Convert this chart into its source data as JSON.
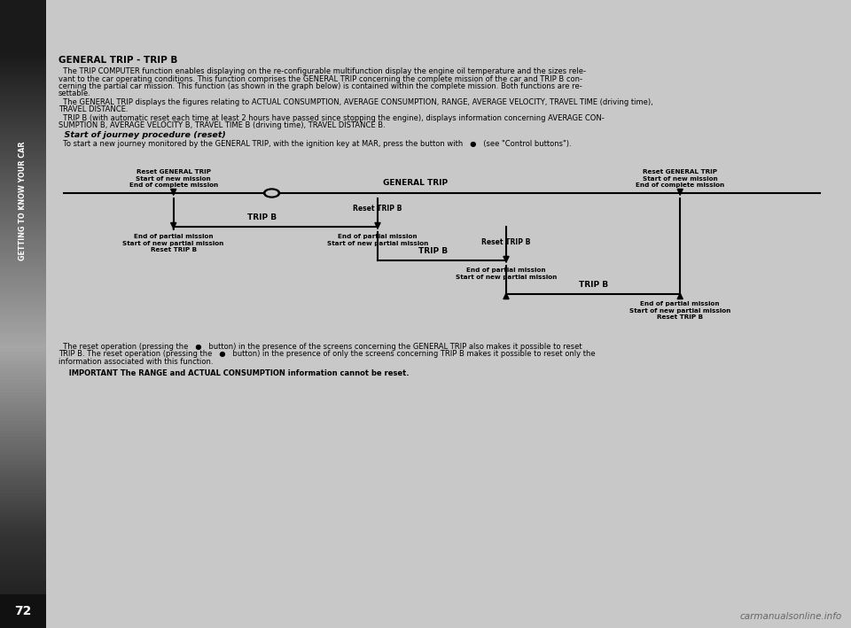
{
  "page_bg": "#c8c8c8",
  "sidebar_dark": "#1a1a1a",
  "sidebar_mid": "#555555",
  "sidebar_light": "#aaaaaa",
  "page_number": "72",
  "title": "GENERAL TRIP - TRIP B",
  "body1_line1": "  The TRIP COMPUTER function enables displaying on the re-configurable multifunction display the engine oil temperature and the sizes rele-",
  "body1_line2": "vant to the car operating conditions. This function comprises the GENERAL TRIP concerning the complete mission of the car and TRIP B con-",
  "body1_line3": "cerning the partial car mission. This function (as shown in the graph below) is contained within the complete mission. Both functions are re-",
  "body1_line4": "settable.",
  "body2_line1": "  The GENERAL TRIP displays the figures relating to ACTUAL CONSUMPTION, AVERAGE CONSUMPTION, RANGE, AVERAGE VELOCITY, TRAVEL TIME (driving time),",
  "body2_line2": "TRAVEL DISTANCE.",
  "body3_line1": "  TRIP B (with automatic reset each time at least 2 hours have passed since stopping the engine), displays information concerning AVERAGE CON-",
  "body3_line2": "SUMPTION B, AVERAGE VELOCITY B, TRAVEL TIME B (driving time), TRAVEL DISTANCE B.",
  "journey_title": "  Start of journey procedure (reset)",
  "journey_line": "  To start a new journey monitored by the GENERAL TRIP, with the ignition key at MAR, press the button with   ●   (see \"Control buttons\").",
  "general_trip_label": "GENERAL TRIP",
  "trip_b_label_1": "TRIP B",
  "trip_b_label_2": "TRIP B",
  "trip_b_label_3": "TRIP B",
  "reset_trip_b_1": "Reset TRIP B",
  "reset_trip_b_2": "Reset TRIP B",
  "ec1_l1": "End of complete mission",
  "ec1_l2": "Start of new mission",
  "ec1_l3": "Reset GENERAL TRIP",
  "ec2_l1": "End of complete mission",
  "ec2_l2": "Start of new mission",
  "ec2_l3": "Reset GENERAL TRIP",
  "ep1_l1": "End of partial mission",
  "ep1_l2": "Start of new partial mission",
  "ep1_l3": "Reset TRIP B",
  "ep2_l1": "End of partial mission",
  "ep2_l2": "Start of new partial mission",
  "ep3_l1": "End of partial mission",
  "ep3_l2": "Start of new partial mission",
  "ep4_l1": "End of partial mission",
  "ep4_l2": "Start of new partial mission",
  "ep4_l3": "Reset TRIP B",
  "footer_l1": "  The reset operation (pressing the   ●   button) in the presence of the screens concerning the GENERAL TRIP also makes it possible to reset",
  "footer_l2": "TRIP B. The reset operation (pressing the   ●   button) in the presence of only the screens concerning TRIP B makes it possible to reset only the",
  "footer_l3": "information associated with this function.",
  "important": "  IMPORTANT The RANGE and ACTUAL CONSUMPTION information cannot be reset.",
  "watermark": "carmanualsonline.info",
  "sidebar_text": "GETTING TO KNOW YOUR CAR",
  "text_color": "#000000",
  "title_fontsize": 7.5,
  "body_fontsize": 6.0,
  "diagram_text_fontsize": 5.2,
  "diagram_label_fontsize": 6.5
}
